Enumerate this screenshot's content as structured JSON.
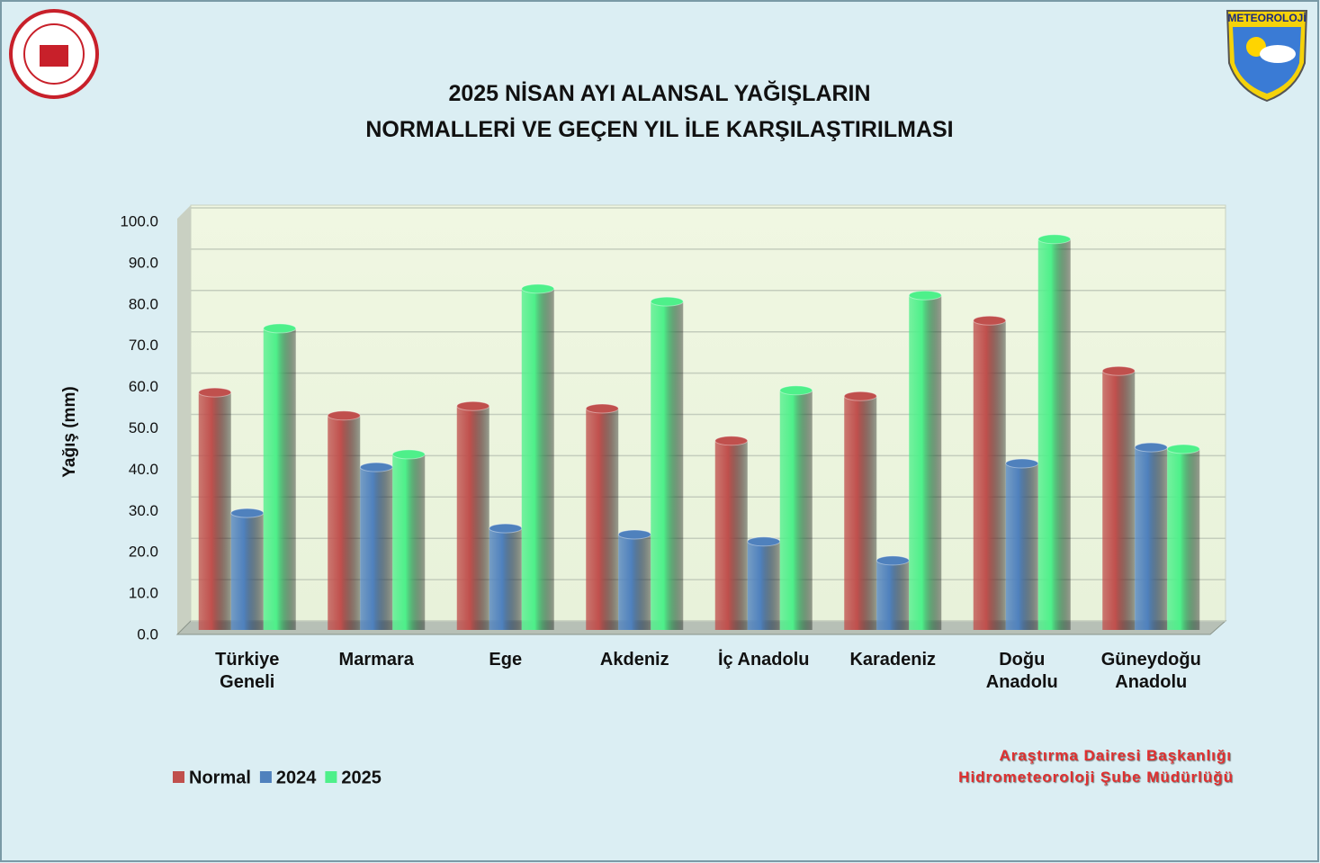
{
  "chart_data": {
    "type": "bar3d",
    "title": [
      "2025 NİSAN AYI ALANSAL YAĞIŞLARIN",
      "NORMALLERİ VE GEÇEN YIL İLE KARŞILAŞTIRILMASI"
    ],
    "y_label": "Yağış (mm)",
    "categories": [
      "Türkiye Geneli",
      "Marmara",
      "Ege",
      "Akdeniz",
      "İç Anadolu",
      "Karadeniz",
      "Doğu Anadolu",
      "Güneydoğu Anadolu"
    ],
    "series": [
      {
        "name": "Normal",
        "color": "#c0504d",
        "values": [
          57.5,
          51.9,
          54.2,
          53.6,
          45.8,
          56.6,
          74.9,
          62.7
        ]
      },
      {
        "name": "2024",
        "color": "#4f81bd",
        "values": [
          28.3,
          39.4,
          24.6,
          23.1,
          21.4,
          16.8,
          40.3,
          44.2
        ]
      },
      {
        "name": "2025",
        "color": "#4ef08a",
        "values": [
          73.0,
          42.5,
          82.6,
          79.5,
          58.0,
          81.0,
          94.6,
          43.8
        ]
      }
    ],
    "ylim": [
      0,
      100
    ],
    "yticks": [
      {
        "value": 0,
        "label": "0.0"
      },
      {
        "value": 10,
        "label": "10.0"
      },
      {
        "value": 20,
        "label": "20.0"
      },
      {
        "value": 30,
        "label": "30.0"
      },
      {
        "value": 40,
        "label": "40.0"
      },
      {
        "value": 50,
        "label": "50.0"
      },
      {
        "value": 60,
        "label": "60.0"
      },
      {
        "value": 70,
        "label": "70.0"
      },
      {
        "value": 80,
        "label": "80.0"
      },
      {
        "value": 90,
        "label": "90.0"
      },
      {
        "value": 100,
        "label": "100.0"
      }
    ],
    "grid": true,
    "legend": "bottom-left",
    "credits": [
      "Araştırma Dairesi Başkanlığı",
      "Hidrometeoroloji Şube Müdürlüğü"
    ],
    "logo_text": "METEOROLOJİ"
  }
}
